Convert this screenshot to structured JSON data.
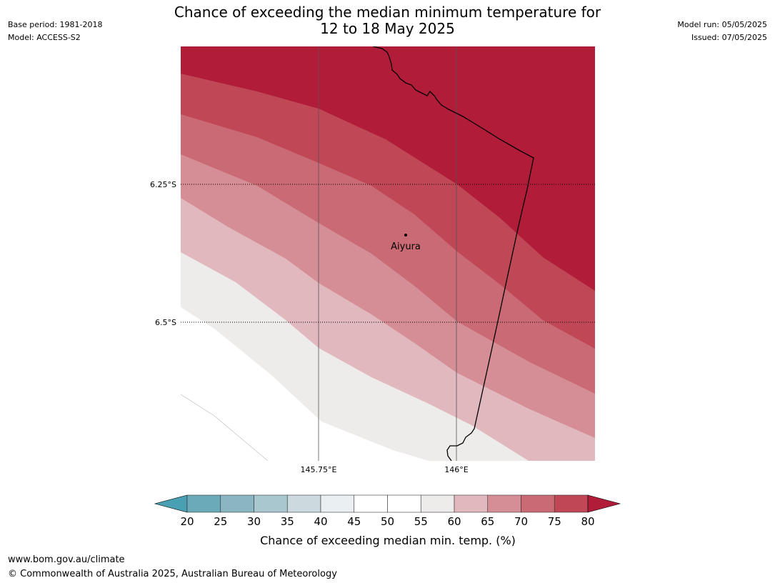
{
  "meta": {
    "base_period": "Base period: 1981-2018",
    "model": "Model: ACCESS-S2",
    "model_run": "Model run: 05/05/2025",
    "issued": "Issued: 07/05/2025"
  },
  "title": {
    "line1": "Chance of exceeding the median minimum temperature for",
    "line2": "12 to 18 May 2025"
  },
  "map": {
    "lat_labels": [
      "6.25°S",
      "6.5°S"
    ],
    "lon_labels": [
      "145.75°E",
      "146°E"
    ],
    "place": "Aiyura"
  },
  "colorbar": {
    "ticks": [
      "20",
      "25",
      "30",
      "35",
      "40",
      "45",
      "50",
      "55",
      "60",
      "65",
      "70",
      "75",
      "80"
    ],
    "colors": [
      "#6aaab9",
      "#8ab6c4",
      "#a8c7ce",
      "#ccd9df",
      "#eaf0f2",
      "#ffffff",
      "#ffffff",
      "#eeeceb",
      "#e0b8bd",
      "#d58e96",
      "#c96a74",
      "#bf4756"
    ],
    "under_color": "#4aa0b3",
    "over_color": "#b11c38",
    "label": "Chance of exceeding median min. temp. (%)"
  },
  "footer": {
    "url": "www.bom.gov.au/climate",
    "copyright": "© Commonwealth of Australia 2025, Australian Bureau of Meteorology"
  }
}
